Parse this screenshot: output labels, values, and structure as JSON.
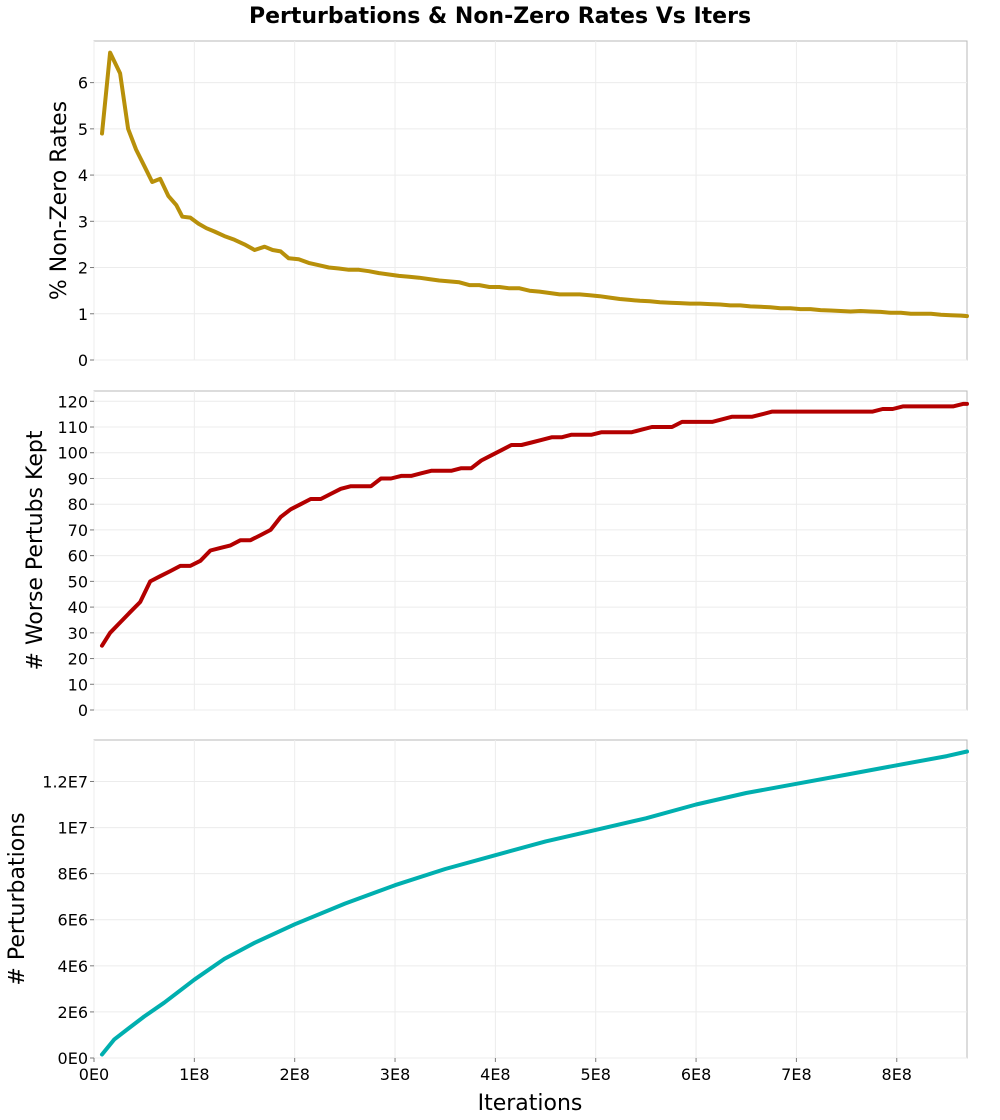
{
  "title": "Perturbations & Non-Zero Rates Vs Iters",
  "xlabel": "Iterations",
  "xtick_labels": [
    "0E0",
    "1E8",
    "2E8",
    "3E8",
    "4E8",
    "5E8",
    "6E8",
    "7E8",
    "8E8"
  ],
  "chart_data": [
    {
      "type": "line",
      "ylabel": "% Non-Zero Rates",
      "color": "#b8900a",
      "xlim": [
        0,
        870000000
      ],
      "ylim": [
        0,
        6.9
      ],
      "yticks": [
        0,
        1,
        2,
        3,
        4,
        5,
        6
      ],
      "ytick_labels": [
        "0",
        "1",
        "2",
        "3",
        "4",
        "5",
        "6"
      ],
      "grid": true,
      "x": [
        8000000,
        16000000,
        26000000,
        34000000,
        42000000,
        50000000,
        58000000,
        66000000,
        74000000,
        82000000,
        88000000,
        96000000,
        104000000,
        112000000,
        120000000,
        130000000,
        140000000,
        150000000,
        160000000,
        170000000,
        178000000,
        186000000,
        194000000,
        204000000,
        214000000,
        224000000,
        234000000,
        244000000,
        254000000,
        264000000,
        274000000,
        284000000,
        294000000,
        304000000,
        314000000,
        324000000,
        334000000,
        344000000,
        354000000,
        364000000,
        374000000,
        384000000,
        394000000,
        404000000,
        414000000,
        424000000,
        434000000,
        444000000,
        454000000,
        464000000,
        474000000,
        484000000,
        494000000,
        504000000,
        514000000,
        524000000,
        534000000,
        544000000,
        554000000,
        564000000,
        574000000,
        584000000,
        594000000,
        604000000,
        614000000,
        624000000,
        634000000,
        644000000,
        654000000,
        664000000,
        674000000,
        684000000,
        694000000,
        704000000,
        714000000,
        724000000,
        734000000,
        744000000,
        754000000,
        764000000,
        774000000,
        784000000,
        794000000,
        804000000,
        814000000,
        824000000,
        834000000,
        844000000,
        854000000,
        864000000,
        870000000
      ],
      "y": [
        4.9,
        6.65,
        6.2,
        5.0,
        4.55,
        4.2,
        3.85,
        3.92,
        3.55,
        3.35,
        3.1,
        3.08,
        2.95,
        2.85,
        2.78,
        2.68,
        2.6,
        2.5,
        2.38,
        2.45,
        2.38,
        2.35,
        2.2,
        2.18,
        2.1,
        2.05,
        2.0,
        1.98,
        1.95,
        1.95,
        1.92,
        1.88,
        1.85,
        1.82,
        1.8,
        1.78,
        1.75,
        1.72,
        1.7,
        1.68,
        1.62,
        1.62,
        1.58,
        1.58,
        1.55,
        1.55,
        1.5,
        1.48,
        1.45,
        1.42,
        1.42,
        1.42,
        1.4,
        1.38,
        1.35,
        1.32,
        1.3,
        1.28,
        1.27,
        1.25,
        1.24,
        1.23,
        1.22,
        1.22,
        1.21,
        1.2,
        1.18,
        1.18,
        1.16,
        1.15,
        1.14,
        1.12,
        1.12,
        1.1,
        1.1,
        1.08,
        1.07,
        1.06,
        1.05,
        1.06,
        1.05,
        1.04,
        1.02,
        1.02,
        1.0,
        1.0,
        1.0,
        0.98,
        0.97,
        0.96,
        0.95
      ]
    },
    {
      "type": "line",
      "ylabel": "# Worse Pertubs Kept",
      "color": "#b30000",
      "xlim": [
        0,
        870000000
      ],
      "ylim": [
        0,
        124
      ],
      "yticks": [
        0,
        10,
        20,
        30,
        40,
        50,
        60,
        70,
        80,
        90,
        100,
        110,
        120
      ],
      "ytick_labels": [
        "0",
        "10",
        "20",
        "30",
        "40",
        "50",
        "60",
        "70",
        "80",
        "90",
        "100",
        "110",
        "120"
      ],
      "grid": true,
      "x": [
        8000000,
        16000000,
        26000000,
        36000000,
        46000000,
        56000000,
        66000000,
        76000000,
        86000000,
        96000000,
        106000000,
        116000000,
        126000000,
        136000000,
        146000000,
        156000000,
        166000000,
        176000000,
        186000000,
        196000000,
        206000000,
        216000000,
        226000000,
        236000000,
        246000000,
        256000000,
        266000000,
        276000000,
        286000000,
        296000000,
        306000000,
        316000000,
        326000000,
        336000000,
        346000000,
        356000000,
        366000000,
        376000000,
        386000000,
        396000000,
        406000000,
        416000000,
        426000000,
        436000000,
        446000000,
        456000000,
        466000000,
        476000000,
        486000000,
        496000000,
        506000000,
        516000000,
        526000000,
        536000000,
        546000000,
        556000000,
        566000000,
        576000000,
        586000000,
        596000000,
        606000000,
        616000000,
        626000000,
        636000000,
        646000000,
        656000000,
        666000000,
        676000000,
        686000000,
        696000000,
        706000000,
        716000000,
        726000000,
        736000000,
        746000000,
        756000000,
        766000000,
        776000000,
        786000000,
        796000000,
        806000000,
        816000000,
        826000000,
        836000000,
        846000000,
        856000000,
        866000000,
        870000000
      ],
      "y": [
        25,
        30,
        34,
        38,
        42,
        50,
        52,
        54,
        56,
        56,
        58,
        62,
        63,
        64,
        66,
        66,
        68,
        70,
        75,
        78,
        80,
        82,
        82,
        84,
        86,
        87,
        87,
        87,
        90,
        90,
        91,
        91,
        92,
        93,
        93,
        93,
        94,
        94,
        97,
        99,
        101,
        103,
        103,
        104,
        105,
        106,
        106,
        107,
        107,
        107,
        108,
        108,
        108,
        108,
        109,
        110,
        110,
        110,
        112,
        112,
        112,
        112,
        113,
        114,
        114,
        114,
        115,
        116,
        116,
        116,
        116,
        116,
        116,
        116,
        116,
        116,
        116,
        116,
        117,
        117,
        118,
        118,
        118,
        118,
        118,
        118,
        119,
        119
      ]
    },
    {
      "type": "line",
      "ylabel": "# Perturbations",
      "color": "#00afaf",
      "xlim": [
        0,
        870000000
      ],
      "ylim": [
        0,
        13800000
      ],
      "yticks": [
        0,
        2000000,
        4000000,
        6000000,
        8000000,
        10000000,
        12000000
      ],
      "ytick_labels": [
        "0E0",
        "2E6",
        "4E6",
        "6E6",
        "8E6",
        "1E7",
        "1.2E7"
      ],
      "grid": true,
      "x": [
        8000000,
        20000000,
        35000000,
        50000000,
        70000000,
        100000000,
        130000000,
        160000000,
        200000000,
        250000000,
        300000000,
        350000000,
        400000000,
        450000000,
        500000000,
        550000000,
        600000000,
        650000000,
        700000000,
        750000000,
        800000000,
        850000000,
        870000000
      ],
      "y": [
        150000,
        800000,
        1300000,
        1800000,
        2400000,
        3400000,
        4300000,
        5000000,
        5800000,
        6700000,
        7500000,
        8200000,
        8800000,
        9400000,
        9900000,
        10400000,
        11000000,
        11500000,
        11900000,
        12300000,
        12700000,
        13100000,
        13300000
      ]
    }
  ]
}
